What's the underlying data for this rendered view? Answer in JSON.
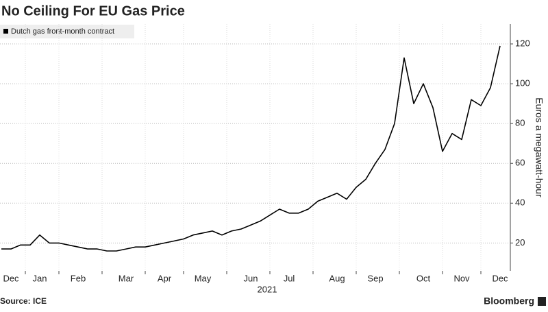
{
  "chart_data": {
    "type": "line",
    "title": "No Ceiling For EU Gas Price",
    "source": "Source: ICE",
    "brand": "Bloomberg",
    "ylabel": "Euros a megawatt-hour",
    "xlabel": "2021",
    "categories": [
      null,
      "Dec",
      null,
      null,
      "Jan",
      null,
      null,
      null,
      "Feb",
      null,
      null,
      null,
      null,
      "Mar",
      null,
      null,
      null,
      "Apr",
      null,
      null,
      null,
      "May",
      null,
      null,
      null,
      null,
      "Jun",
      null,
      null,
      null,
      "Jul",
      null,
      null,
      null,
      null,
      "Aug",
      null,
      null,
      null,
      "Sep",
      null,
      null,
      null,
      null,
      "Oct",
      null,
      null,
      null,
      "Nov",
      null,
      null,
      null,
      "Dec"
    ],
    "series": [
      {
        "name": "Dutch gas front-month contract",
        "color": "#000000",
        "values": [
          17,
          17,
          19,
          19,
          24,
          20,
          20,
          19,
          18,
          17,
          17,
          16,
          16,
          17,
          18,
          18,
          19,
          20,
          21,
          22,
          24,
          25,
          26,
          24,
          26,
          27,
          29,
          31,
          34,
          37,
          35,
          35,
          37,
          41,
          43,
          45,
          42,
          48,
          52,
          60,
          67,
          80,
          113,
          90,
          100,
          88,
          66,
          75,
          72,
          92,
          89,
          98,
          119
        ]
      }
    ],
    "ylim": [
      6,
      130
    ],
    "yticks": [
      20,
      40,
      60,
      80,
      100,
      120
    ],
    "grid": true,
    "legend": "top-left"
  }
}
